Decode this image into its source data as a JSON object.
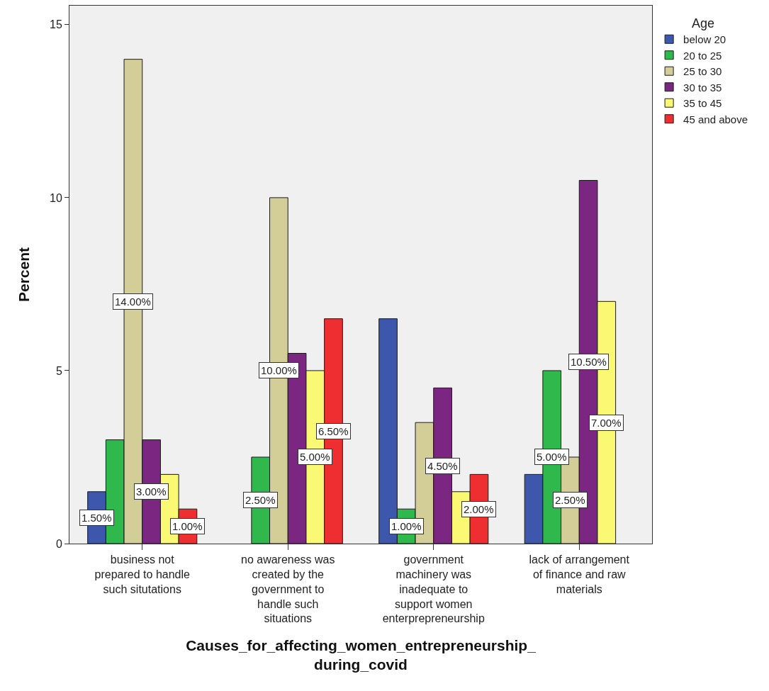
{
  "chart_data": {
    "type": "bar",
    "xlabel": "Causes_for_affecting_women_entrepreneurship_during_covid",
    "ylabel": "Percent",
    "legend_title": "Age",
    "categories": [
      "business not prepared to handle such situtations",
      "no awareness was created by the government to handle such situations",
      "government machinery was inadequate to support women enterprepreneurship",
      "lack of arrangement of finance and raw materials"
    ],
    "series": [
      {
        "name": "below 20",
        "color": "#3c57ab",
        "values": [
          1.5,
          null,
          6.5,
          2
        ],
        "value_labels": [
          "1.50%",
          null,
          null,
          null
        ]
      },
      {
        "name": "20 to 25",
        "color": "#2fb84b",
        "values": [
          3,
          2.5,
          1,
          5
        ],
        "value_labels": [
          null,
          "2.50%",
          "1.00%",
          "5.00%"
        ]
      },
      {
        "name": "25 to 30",
        "color": "#d3ce97",
        "values": [
          14,
          10,
          3.5,
          2.5
        ],
        "value_labels": [
          "14.00%",
          "10.00%",
          null,
          "2.50%"
        ]
      },
      {
        "name": "30 to 35",
        "color": "#7b2781",
        "values": [
          3,
          5.5,
          4.5,
          10.5
        ],
        "value_labels": [
          "3.00%",
          null,
          "4.50%",
          "10.50%"
        ]
      },
      {
        "name": "35 to 45",
        "color": "#fbf873",
        "values": [
          2,
          5,
          1.5,
          7
        ],
        "value_labels": [
          null,
          "5.00%",
          null,
          "7.00%"
        ]
      },
      {
        "name": "45 and above",
        "color": "#ee2e31",
        "values": [
          1,
          6.5,
          2,
          null
        ],
        "value_labels": [
          "1.00%",
          "6.50%",
          "2.00%",
          null
        ]
      }
    ],
    "ylim": [
      0,
      15.55
    ],
    "yticks": [
      0,
      5,
      10,
      15
    ],
    "grid": false,
    "legend": "top right"
  }
}
